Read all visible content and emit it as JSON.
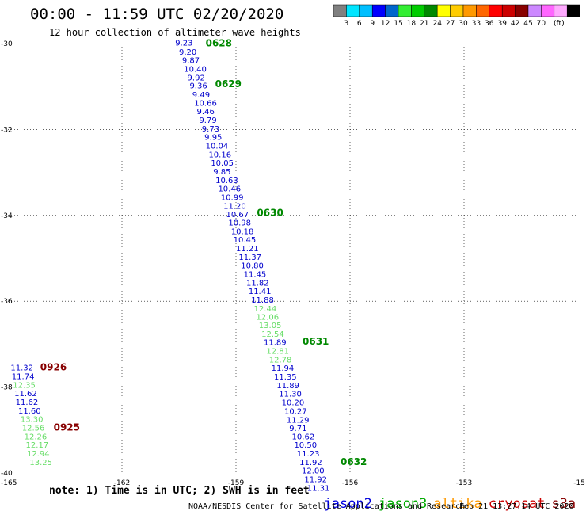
{
  "title": "00:00 - 11:59 UTC 02/20/2020",
  "subtitle": "12 hour collection of altimeter wave heights",
  "note": "note: 1) Time is in UTC; 2) SWH is in feet",
  "credit": "NOAA/NESDIS Center for Satellite Applications and Research",
  "timestamp": "Feb 21 13:27:14 UTC 2020",
  "legend": [
    {
      "name": "jason2",
      "color": "#0000dd"
    },
    {
      "name": "jason3",
      "color": "#00aa00"
    },
    {
      "name": "altika",
      "color": "#ff9900"
    },
    {
      "name": "cryosat",
      "color": "#cc0000"
    },
    {
      "name": "s3a",
      "color": "#880000"
    }
  ],
  "colorbar": {
    "unit": "(ft)",
    "colors": [
      "#808080",
      "#00e5ff",
      "#00bfff",
      "#0000ff",
      "#0066cc",
      "#33ee33",
      "#00cc00",
      "#008800",
      "#ffff00",
      "#ffcc00",
      "#ff9900",
      "#ff6600",
      "#ff0000",
      "#cc0000",
      "#880000",
      "#cc88ff",
      "#ff66ff",
      "#ffaaff",
      "#000000"
    ],
    "labels": [
      "3",
      "6",
      "9",
      "12",
      "15",
      "18",
      "21",
      "24",
      "27",
      "30",
      "33",
      "36",
      "39",
      "42",
      "45",
      "70"
    ]
  },
  "chart_data": {
    "type": "scatter",
    "title": "00:00 - 11:59 UTC 02/20/2020",
    "subtitle": "12 hour collection of altimeter wave heights",
    "xlim": [
      -165,
      -150
    ],
    "ylim": [
      -40,
      -30
    ],
    "x_ticks": [
      "-165",
      "-162",
      "-159",
      "-156",
      "-153",
      "-15"
    ],
    "y_ticks": [
      "-30",
      "-32",
      "-34",
      "-36",
      "-38",
      "-40"
    ],
    "grid": true,
    "colors": {
      "blue": "#0000cc",
      "light_green": "#66dd66",
      "pass_green": "#008800",
      "pass_red": "#880000"
    },
    "points": [
      {
        "x": -160.6,
        "y": -29.97,
        "v": "9.23",
        "c": "blue"
      },
      {
        "x": -160.5,
        "y": -30.18,
        "v": "9.20",
        "c": "blue"
      },
      {
        "x": -160.42,
        "y": -30.38,
        "v": "9.87",
        "c": "blue"
      },
      {
        "x": -160.37,
        "y": -30.58,
        "v": "10.40",
        "c": "blue"
      },
      {
        "x": -160.28,
        "y": -30.78,
        "v": "9.92",
        "c": "blue"
      },
      {
        "x": -160.22,
        "y": -30.97,
        "v": "9.36",
        "c": "blue"
      },
      {
        "x": -160.15,
        "y": -31.18,
        "v": "9.49",
        "c": "blue"
      },
      {
        "x": -160.1,
        "y": -31.37,
        "v": "10.66",
        "c": "blue"
      },
      {
        "x": -160.03,
        "y": -31.57,
        "v": "9.46",
        "c": "blue"
      },
      {
        "x": -159.97,
        "y": -31.77,
        "v": "9.79",
        "c": "blue"
      },
      {
        "x": -159.9,
        "y": -31.97,
        "v": "9.73",
        "c": "blue"
      },
      {
        "x": -159.83,
        "y": -32.17,
        "v": "9.95",
        "c": "blue"
      },
      {
        "x": -159.8,
        "y": -32.37,
        "v": "10.04",
        "c": "blue"
      },
      {
        "x": -159.72,
        "y": -32.57,
        "v": "10.16",
        "c": "blue"
      },
      {
        "x": -159.66,
        "y": -32.77,
        "v": "10.05",
        "c": "blue"
      },
      {
        "x": -159.6,
        "y": -32.97,
        "v": "9.85",
        "c": "blue"
      },
      {
        "x": -159.54,
        "y": -33.17,
        "v": "10.63",
        "c": "blue"
      },
      {
        "x": -159.47,
        "y": -33.37,
        "v": "10.46",
        "c": "blue"
      },
      {
        "x": -159.4,
        "y": -33.57,
        "v": "10.99",
        "c": "blue"
      },
      {
        "x": -159.33,
        "y": -33.77,
        "v": "11.20",
        "c": "blue"
      },
      {
        "x": -159.26,
        "y": -33.97,
        "v": "10.67",
        "c": "blue"
      },
      {
        "x": -159.2,
        "y": -34.16,
        "v": "10.98",
        "c": "blue"
      },
      {
        "x": -159.13,
        "y": -34.36,
        "v": "10.18",
        "c": "blue"
      },
      {
        "x": -159.07,
        "y": -34.56,
        "v": "10.45",
        "c": "blue"
      },
      {
        "x": -159.0,
        "y": -34.76,
        "v": "11.21",
        "c": "blue"
      },
      {
        "x": -158.93,
        "y": -34.96,
        "v": "11.37",
        "c": "blue"
      },
      {
        "x": -158.87,
        "y": -35.16,
        "v": "10.80",
        "c": "blue"
      },
      {
        "x": -158.8,
        "y": -35.36,
        "v": "11.45",
        "c": "blue"
      },
      {
        "x": -158.73,
        "y": -35.56,
        "v": "11.82",
        "c": "blue"
      },
      {
        "x": -158.67,
        "y": -35.76,
        "v": "11.41",
        "c": "blue"
      },
      {
        "x": -158.6,
        "y": -35.96,
        "v": "11.88",
        "c": "blue"
      },
      {
        "x": -158.53,
        "y": -36.16,
        "v": "12.44",
        "c": "light_green"
      },
      {
        "x": -158.47,
        "y": -36.36,
        "v": "12.06",
        "c": "light_green"
      },
      {
        "x": -158.4,
        "y": -36.55,
        "v": "13.05",
        "c": "light_green"
      },
      {
        "x": -158.33,
        "y": -36.75,
        "v": "12.54",
        "c": "light_green"
      },
      {
        "x": -158.27,
        "y": -36.95,
        "v": "11.89",
        "c": "blue"
      },
      {
        "x": -158.2,
        "y": -37.15,
        "v": "12.81",
        "c": "light_green"
      },
      {
        "x": -158.13,
        "y": -37.35,
        "v": "12.78",
        "c": "light_green"
      },
      {
        "x": -158.07,
        "y": -37.55,
        "v": "11.94",
        "c": "blue"
      },
      {
        "x": -158.0,
        "y": -37.75,
        "v": "11.35",
        "c": "blue"
      },
      {
        "x": -157.93,
        "y": -37.95,
        "v": "11.89",
        "c": "blue"
      },
      {
        "x": -157.87,
        "y": -38.15,
        "v": "11.30",
        "c": "blue"
      },
      {
        "x": -157.8,
        "y": -38.35,
        "v": "10.20",
        "c": "blue"
      },
      {
        "x": -157.73,
        "y": -38.55,
        "v": "10.27",
        "c": "blue"
      },
      {
        "x": -157.67,
        "y": -38.75,
        "v": "11.29",
        "c": "blue"
      },
      {
        "x": -157.6,
        "y": -38.95,
        "v": "9.71",
        "c": "blue"
      },
      {
        "x": -157.53,
        "y": -39.14,
        "v": "10.62",
        "c": "blue"
      },
      {
        "x": -157.47,
        "y": -39.34,
        "v": "10.50",
        "c": "blue"
      },
      {
        "x": -157.4,
        "y": -39.54,
        "v": "11.23",
        "c": "blue"
      },
      {
        "x": -157.33,
        "y": -39.74,
        "v": "11.92",
        "c": "blue"
      },
      {
        "x": -157.27,
        "y": -39.94,
        "v": "12.00",
        "c": "blue"
      },
      {
        "x": -157.2,
        "y": -40.14,
        "v": "11.92",
        "c": "blue"
      },
      {
        "x": -157.13,
        "y": -40.34,
        "v": "11.31",
        "c": "blue"
      },
      {
        "x": -164.93,
        "y": -37.54,
        "v": "11.32",
        "c": "blue"
      },
      {
        "x": -164.9,
        "y": -37.74,
        "v": "11.74",
        "c": "blue"
      },
      {
        "x": -164.87,
        "y": -37.94,
        "v": "12.35",
        "c": "light_green"
      },
      {
        "x": -164.83,
        "y": -38.14,
        "v": "11.62",
        "c": "blue"
      },
      {
        "x": -164.8,
        "y": -38.34,
        "v": "11.62",
        "c": "blue"
      },
      {
        "x": -164.73,
        "y": -38.54,
        "v": "11.60",
        "c": "blue"
      },
      {
        "x": -164.67,
        "y": -38.74,
        "v": "13.30",
        "c": "light_green"
      },
      {
        "x": -164.63,
        "y": -38.94,
        "v": "12.56",
        "c": "light_green"
      },
      {
        "x": -164.57,
        "y": -39.14,
        "v": "12.26",
        "c": "light_green"
      },
      {
        "x": -164.53,
        "y": -39.34,
        "v": "12.17",
        "c": "light_green"
      },
      {
        "x": -164.5,
        "y": -39.54,
        "v": "12.94",
        "c": "light_green"
      },
      {
        "x": -164.43,
        "y": -39.74,
        "v": "13.25",
        "c": "light_green"
      }
    ],
    "pass_labels": [
      {
        "x": -159.8,
        "y": -29.97,
        "label": "0628",
        "c": "pass_green"
      },
      {
        "x": -159.55,
        "y": -30.92,
        "label": "0629",
        "c": "pass_green"
      },
      {
        "x": -158.45,
        "y": -33.92,
        "label": "0630",
        "c": "pass_green"
      },
      {
        "x": -157.25,
        "y": -36.92,
        "label": "0631",
        "c": "pass_green"
      },
      {
        "x": -156.25,
        "y": -39.72,
        "label": "0632",
        "c": "pass_green"
      },
      {
        "x": -164.15,
        "y": -37.52,
        "label": "0926",
        "c": "pass_red"
      },
      {
        "x": -163.8,
        "y": -38.92,
        "label": "0925",
        "c": "pass_red"
      }
    ]
  }
}
